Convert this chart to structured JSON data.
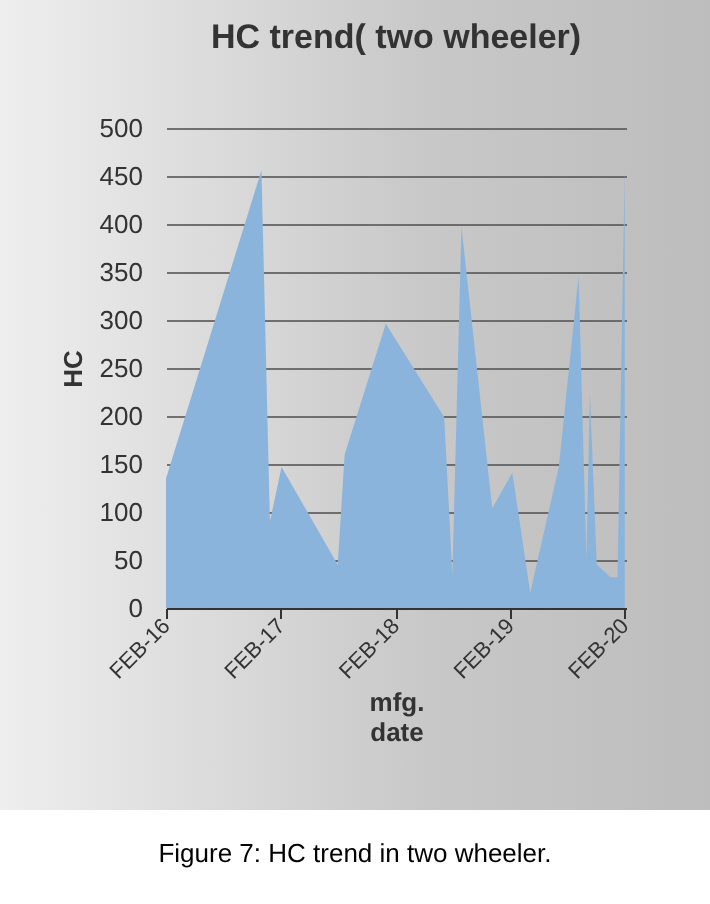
{
  "chart_data": {
    "type": "area",
    "title": "HC trend( two wheeler)",
    "xlabel": "mfg. date",
    "ylabel": "HC",
    "x": [
      "2016-02-01",
      "2016-12-01",
      "2016-12-28",
      "2017-02-03",
      "2017-08-01",
      "2017-08-23",
      "2018-01-01",
      "2018-07-06",
      "2018-08-01",
      "2018-08-30",
      "2018-12-06",
      "2019-02-08",
      "2019-04-06",
      "2019-07-06",
      "2019-09-07",
      "2019-10-02",
      "2019-10-13",
      "2019-11-04",
      "2019-12-18",
      "2020-01-09",
      "2020-02-01"
    ],
    "values": [
      135,
      456,
      90,
      147,
      45,
      160,
      296,
      199,
      35,
      397,
      104,
      141,
      16,
      147,
      346,
      51,
      224,
      45,
      32,
      32,
      458
    ],
    "color": "#8ab4dc",
    "xlim": [
      "2016-02-01",
      "2020-02-05"
    ],
    "xticks": [
      {
        "value": "2016-02-01",
        "label": "FEB-16"
      },
      {
        "value": "2017-02-01",
        "label": "FEB-17"
      },
      {
        "value": "2018-02-01",
        "label": "FEB-18"
      },
      {
        "value": "2019-02-01",
        "label": "FEB-19"
      },
      {
        "value": "2020-02-01",
        "label": "FEB-20"
      }
    ],
    "ylim": [
      0,
      500
    ],
    "yticks": [
      0,
      50,
      100,
      150,
      200,
      250,
      300,
      350,
      400,
      450,
      500
    ],
    "grid": "y",
    "annotations": [
      "Figure 7: HC trend in two wheeler."
    ]
  }
}
